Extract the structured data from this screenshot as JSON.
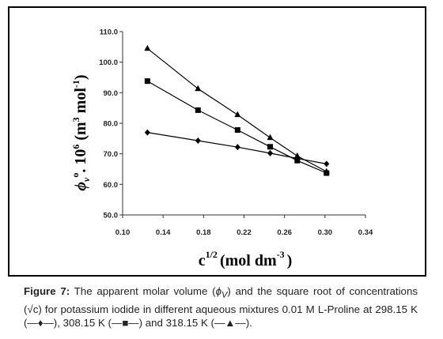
{
  "chart_data": {
    "type": "line",
    "xlabel": "c",
    "xlabel_sup": "1/2",
    "xlabel_units": "(mol dm",
    "xlabel_units_sup": "-3",
    "xlabel_close": ")",
    "ylabel_main": "ϕ",
    "ylabel_sub": "v",
    "ylabel_sup": "o",
    "ylabel_mid": ". 10",
    "ylabel_exp": "6",
    "ylabel_units": " (m",
    "ylabel_units_sup": "3",
    "ylabel_units2": " mol",
    "ylabel_units_sup2": "-1",
    "ylabel_close": ")",
    "xlim": [
      0.1,
      0.34
    ],
    "ylim": [
      50.0,
      110.0
    ],
    "xticks": [
      "0.10",
      "0.14",
      "0.18",
      "0.22",
      "0.26",
      "0.30",
      "0.34"
    ],
    "xtick_values": [
      0.1,
      0.14,
      0.18,
      0.22,
      0.26,
      0.3,
      0.34
    ],
    "yticks": [
      "50.0",
      "60.0",
      "70.0",
      "80.0",
      "90.0",
      "100.0",
      "110.0"
    ],
    "ytick_values": [
      50,
      60,
      70,
      80,
      90,
      100,
      110
    ],
    "grid": false,
    "series": [
      {
        "marker": "diamond",
        "x": [
          0.1245,
          0.1745,
          0.2136,
          0.2458,
          0.2726,
          0.3015
        ],
        "y": [
          77.0,
          74.3,
          72.2,
          70.2,
          68.5,
          66.7
        ]
      },
      {
        "marker": "square",
        "x": [
          0.1245,
          0.1745,
          0.2136,
          0.2458,
          0.2726,
          0.3015
        ],
        "y": [
          93.8,
          84.3,
          77.8,
          72.3,
          67.8,
          63.7
        ]
      },
      {
        "marker": "triangle",
        "x": [
          0.1245,
          0.1745,
          0.2136,
          0.2458,
          0.2726,
          0.3015
        ],
        "y": [
          104.5,
          91.3,
          82.8,
          75.3,
          69.3,
          64.2
        ]
      }
    ]
  },
  "caption": {
    "label": "Figure 7:",
    "text_1": " The apparent molar volume (",
    "symbol": "ϕ",
    "symbol_sub": "V",
    "text_2": ") and the square root of concentrations (√c) for potassium iodide in different aqueous mixtures 0.01 M L-Proline at 298.15 K (—♦—), 308.15 K (—■—) and 318.15 K (—▲—)."
  }
}
